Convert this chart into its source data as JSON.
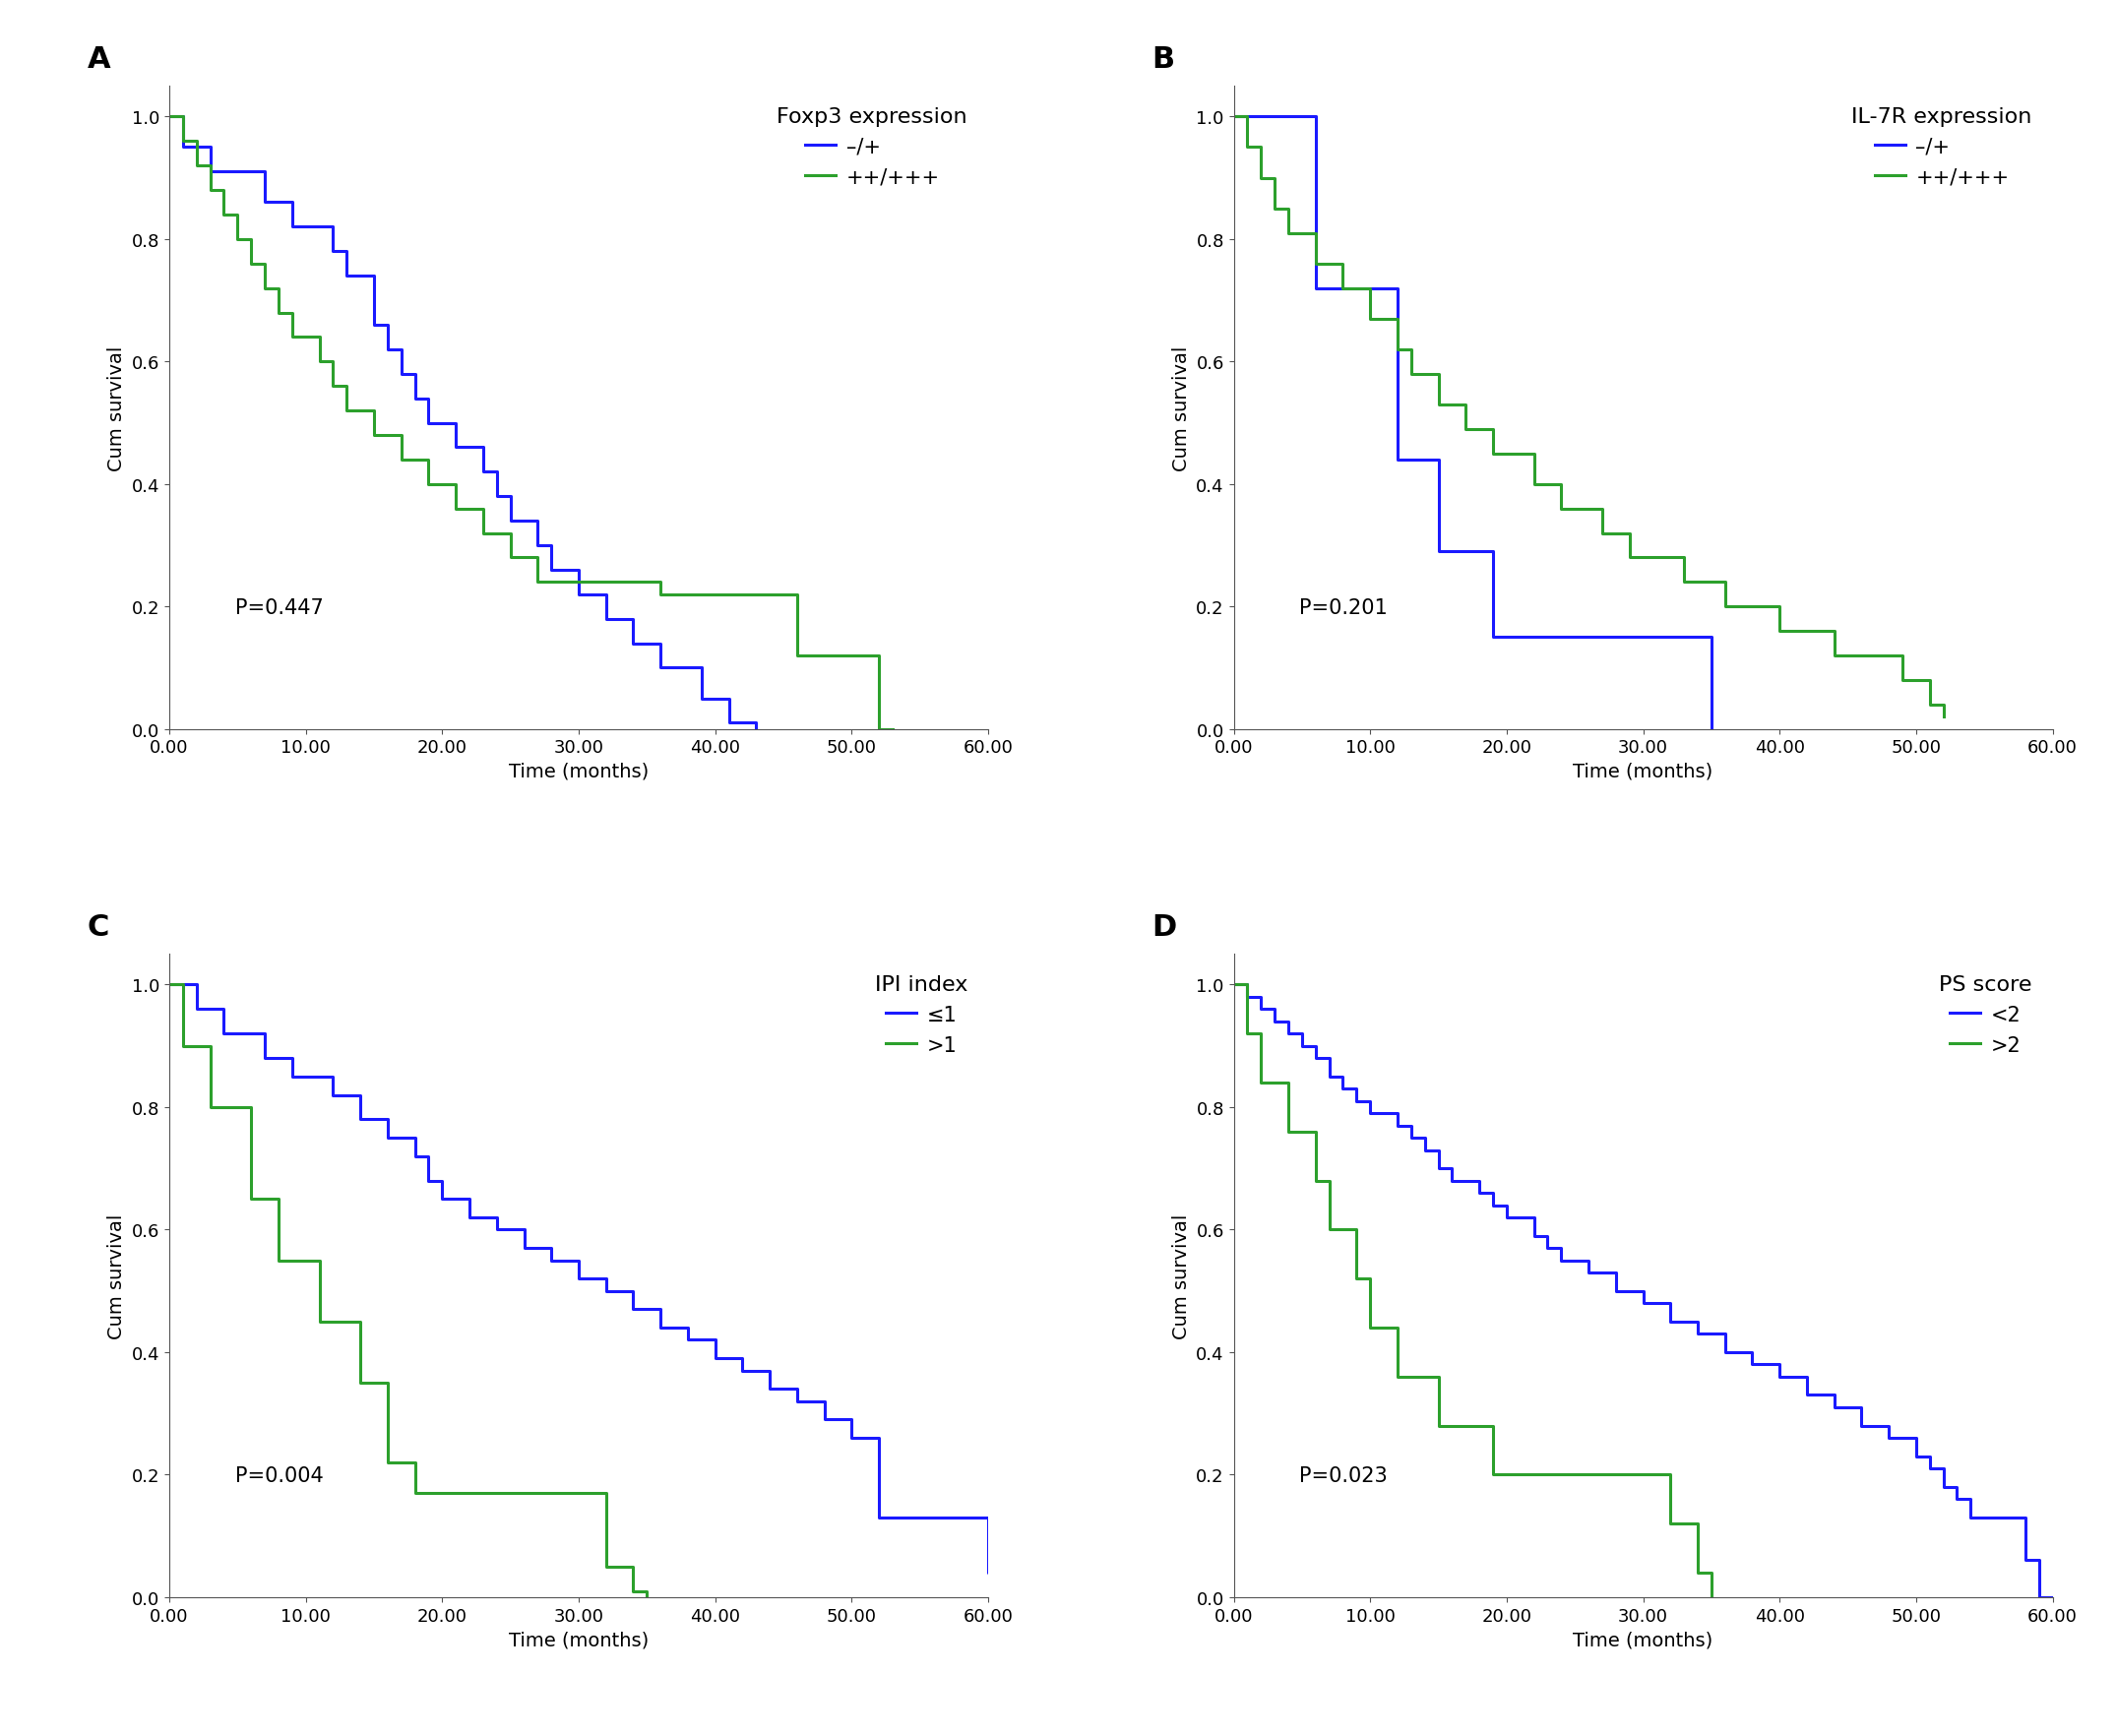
{
  "panels": [
    {
      "label": "A",
      "title": "Foxp3 expression",
      "pvalue": "P=0.447",
      "legend_labels": [
        "–/+",
        "++/+++"
      ],
      "colors": [
        "#1a1aff",
        "#2ca02c"
      ],
      "curve1": {
        "times": [
          0,
          1,
          2,
          3,
          4,
          5,
          6,
          7,
          8,
          9,
          10,
          11,
          12,
          13,
          14,
          15,
          16,
          17,
          18,
          19,
          20,
          21,
          22,
          23,
          24,
          25,
          26,
          27,
          28,
          29,
          30,
          31,
          32,
          33,
          34,
          35,
          36,
          37,
          38,
          39,
          40,
          41,
          42,
          43
        ],
        "surv": [
          1.0,
          0.95,
          0.95,
          0.91,
          0.91,
          0.91,
          0.91,
          0.86,
          0.86,
          0.82,
          0.82,
          0.82,
          0.78,
          0.74,
          0.74,
          0.66,
          0.62,
          0.58,
          0.54,
          0.5,
          0.5,
          0.46,
          0.46,
          0.42,
          0.38,
          0.34,
          0.34,
          0.3,
          0.26,
          0.26,
          0.22,
          0.22,
          0.18,
          0.18,
          0.14,
          0.14,
          0.1,
          0.1,
          0.1,
          0.05,
          0.05,
          0.01,
          0.01,
          0.0
        ]
      },
      "curve2": {
        "times": [
          0,
          1,
          2,
          3,
          4,
          5,
          6,
          7,
          8,
          9,
          10,
          11,
          12,
          13,
          14,
          15,
          16,
          17,
          18,
          19,
          20,
          21,
          22,
          23,
          24,
          25,
          26,
          27,
          28,
          29,
          30,
          31,
          32,
          33,
          34,
          35,
          36,
          37,
          38,
          39,
          40,
          41,
          42,
          43,
          44,
          45,
          46,
          47,
          48,
          49,
          50,
          51,
          52,
          53
        ],
        "surv": [
          1.0,
          0.96,
          0.92,
          0.88,
          0.84,
          0.8,
          0.76,
          0.72,
          0.68,
          0.64,
          0.64,
          0.6,
          0.56,
          0.52,
          0.52,
          0.48,
          0.48,
          0.44,
          0.44,
          0.4,
          0.4,
          0.36,
          0.36,
          0.32,
          0.32,
          0.28,
          0.28,
          0.24,
          0.24,
          0.24,
          0.24,
          0.24,
          0.24,
          0.24,
          0.24,
          0.24,
          0.22,
          0.22,
          0.22,
          0.22,
          0.22,
          0.22,
          0.22,
          0.22,
          0.22,
          0.22,
          0.12,
          0.12,
          0.12,
          0.12,
          0.12,
          0.12,
          0.0,
          0.0
        ]
      },
      "xlim": [
        0,
        60
      ],
      "xticks": [
        0,
        10,
        20,
        30,
        40,
        50,
        60
      ],
      "xtick_labels": [
        "0.00",
        "10.00",
        "20.00",
        "30.00",
        "40.00",
        "50.00",
        "60.00"
      ],
      "ylim": [
        0,
        1.05
      ],
      "yticks": [
        0.0,
        0.2,
        0.4,
        0.6,
        0.8,
        1.0
      ]
    },
    {
      "label": "B",
      "title": "IL-7R expression",
      "pvalue": "P=0.201",
      "legend_labels": [
        "–/+",
        "++/+++"
      ],
      "colors": [
        "#1a1aff",
        "#2ca02c"
      ],
      "curve1": {
        "times": [
          0,
          1,
          2,
          3,
          4,
          5,
          6,
          7,
          8,
          9,
          10,
          11,
          12,
          13,
          14,
          15,
          16,
          17,
          18,
          19,
          20,
          21,
          22,
          23,
          24,
          25,
          26,
          27,
          28,
          29,
          30,
          31,
          32,
          33,
          34,
          35
        ],
        "surv": [
          1.0,
          1.0,
          1.0,
          1.0,
          1.0,
          1.0,
          0.72,
          0.72,
          0.72,
          0.72,
          0.72,
          0.72,
          0.44,
          0.44,
          0.44,
          0.29,
          0.29,
          0.29,
          0.29,
          0.15,
          0.15,
          0.15,
          0.15,
          0.15,
          0.15,
          0.15,
          0.15,
          0.15,
          0.15,
          0.15,
          0.15,
          0.15,
          0.15,
          0.15,
          0.15,
          0.0
        ]
      },
      "curve2": {
        "times": [
          0,
          1,
          2,
          3,
          4,
          5,
          6,
          7,
          8,
          9,
          10,
          11,
          12,
          13,
          14,
          15,
          16,
          17,
          18,
          19,
          20,
          21,
          22,
          23,
          24,
          25,
          26,
          27,
          28,
          29,
          30,
          31,
          32,
          33,
          34,
          35,
          36,
          37,
          38,
          39,
          40,
          41,
          42,
          43,
          44,
          45,
          46,
          47,
          48,
          49,
          50,
          51,
          52
        ],
        "surv": [
          1.0,
          0.95,
          0.9,
          0.85,
          0.81,
          0.81,
          0.76,
          0.76,
          0.72,
          0.72,
          0.67,
          0.67,
          0.62,
          0.58,
          0.58,
          0.53,
          0.53,
          0.49,
          0.49,
          0.45,
          0.45,
          0.45,
          0.4,
          0.4,
          0.36,
          0.36,
          0.36,
          0.32,
          0.32,
          0.28,
          0.28,
          0.28,
          0.28,
          0.24,
          0.24,
          0.24,
          0.2,
          0.2,
          0.2,
          0.2,
          0.16,
          0.16,
          0.16,
          0.16,
          0.12,
          0.12,
          0.12,
          0.12,
          0.12,
          0.08,
          0.08,
          0.04,
          0.02
        ]
      },
      "xlim": [
        0,
        60
      ],
      "xticks": [
        0,
        10,
        20,
        30,
        40,
        50,
        60
      ],
      "xtick_labels": [
        "0.00",
        "10.00",
        "20.00",
        "30.00",
        "40.00",
        "50.00",
        "60.00"
      ],
      "ylim": [
        0,
        1.05
      ],
      "yticks": [
        0.0,
        0.2,
        0.4,
        0.6,
        0.8,
        1.0
      ]
    },
    {
      "label": "C",
      "title": "IPI index",
      "pvalue": "P=0.004",
      "legend_labels": [
        "≤1",
        ">1"
      ],
      "colors": [
        "#1a1aff",
        "#2ca02c"
      ],
      "curve1": {
        "times": [
          0,
          1,
          2,
          3,
          4,
          5,
          6,
          7,
          8,
          9,
          10,
          11,
          12,
          13,
          14,
          15,
          16,
          17,
          18,
          19,
          20,
          21,
          22,
          23,
          24,
          25,
          26,
          27,
          28,
          29,
          30,
          31,
          32,
          33,
          34,
          35,
          36,
          37,
          38,
          39,
          40,
          41,
          42,
          43,
          44,
          45,
          46,
          47,
          48,
          49,
          50,
          51,
          52,
          53,
          54,
          55,
          56,
          57,
          58,
          59,
          60,
          61
        ],
        "surv": [
          1.0,
          1.0,
          0.96,
          0.96,
          0.92,
          0.92,
          0.92,
          0.88,
          0.88,
          0.85,
          0.85,
          0.85,
          0.82,
          0.82,
          0.78,
          0.78,
          0.75,
          0.75,
          0.72,
          0.68,
          0.65,
          0.65,
          0.62,
          0.62,
          0.6,
          0.6,
          0.57,
          0.57,
          0.55,
          0.55,
          0.52,
          0.52,
          0.5,
          0.5,
          0.47,
          0.47,
          0.44,
          0.44,
          0.42,
          0.42,
          0.39,
          0.39,
          0.37,
          0.37,
          0.34,
          0.34,
          0.32,
          0.32,
          0.29,
          0.29,
          0.26,
          0.26,
          0.13,
          0.13,
          0.13,
          0.13,
          0.13,
          0.13,
          0.13,
          0.13,
          0.04,
          0.0
        ]
      },
      "curve2": {
        "times": [
          0,
          1,
          2,
          3,
          4,
          5,
          6,
          7,
          8,
          9,
          10,
          11,
          12,
          13,
          14,
          15,
          16,
          17,
          18,
          19,
          20,
          21,
          22,
          23,
          24,
          25,
          26,
          27,
          28,
          29,
          30,
          31,
          32,
          33,
          34,
          35
        ],
        "surv": [
          1.0,
          0.9,
          0.9,
          0.8,
          0.8,
          0.8,
          0.65,
          0.65,
          0.55,
          0.55,
          0.55,
          0.45,
          0.45,
          0.45,
          0.35,
          0.35,
          0.22,
          0.22,
          0.17,
          0.17,
          0.17,
          0.17,
          0.17,
          0.17,
          0.17,
          0.17,
          0.17,
          0.17,
          0.17,
          0.17,
          0.17,
          0.17,
          0.05,
          0.05,
          0.01,
          0.0
        ]
      },
      "xlim": [
        0,
        60
      ],
      "xticks": [
        0,
        10,
        20,
        30,
        40,
        50,
        60
      ],
      "xtick_labels": [
        "0.00",
        "10.00",
        "20.00",
        "30.00",
        "40.00",
        "50.00",
        "60.00"
      ],
      "ylim": [
        0,
        1.05
      ],
      "yticks": [
        0.0,
        0.2,
        0.4,
        0.6,
        0.8,
        1.0
      ]
    },
    {
      "label": "D",
      "title": "PS score",
      "pvalue": "P=0.023",
      "legend_labels": [
        "<2",
        ">2"
      ],
      "colors": [
        "#1a1aff",
        "#2ca02c"
      ],
      "curve1": {
        "times": [
          0,
          1,
          2,
          3,
          4,
          5,
          6,
          7,
          8,
          9,
          10,
          11,
          12,
          13,
          14,
          15,
          16,
          17,
          18,
          19,
          20,
          21,
          22,
          23,
          24,
          25,
          26,
          27,
          28,
          29,
          30,
          31,
          32,
          33,
          34,
          35,
          36,
          37,
          38,
          39,
          40,
          41,
          42,
          43,
          44,
          45,
          46,
          47,
          48,
          49,
          50,
          51,
          52,
          53,
          54,
          55,
          56,
          57,
          58,
          59,
          60
        ],
        "surv": [
          1.0,
          0.98,
          0.96,
          0.94,
          0.92,
          0.9,
          0.88,
          0.85,
          0.83,
          0.81,
          0.79,
          0.79,
          0.77,
          0.75,
          0.73,
          0.7,
          0.68,
          0.68,
          0.66,
          0.64,
          0.62,
          0.62,
          0.59,
          0.57,
          0.55,
          0.55,
          0.53,
          0.53,
          0.5,
          0.5,
          0.48,
          0.48,
          0.45,
          0.45,
          0.43,
          0.43,
          0.4,
          0.4,
          0.38,
          0.38,
          0.36,
          0.36,
          0.33,
          0.33,
          0.31,
          0.31,
          0.28,
          0.28,
          0.26,
          0.26,
          0.23,
          0.21,
          0.18,
          0.16,
          0.13,
          0.13,
          0.13,
          0.13,
          0.06,
          0.0,
          0.0
        ]
      },
      "curve2": {
        "times": [
          0,
          1,
          2,
          3,
          4,
          5,
          6,
          7,
          8,
          9,
          10,
          11,
          12,
          13,
          14,
          15,
          16,
          17,
          18,
          19,
          20,
          21,
          22,
          23,
          24,
          25,
          26,
          27,
          28,
          29,
          30,
          31,
          32,
          33,
          34,
          35
        ],
        "surv": [
          1.0,
          0.92,
          0.84,
          0.84,
          0.76,
          0.76,
          0.68,
          0.6,
          0.6,
          0.52,
          0.44,
          0.44,
          0.36,
          0.36,
          0.36,
          0.28,
          0.28,
          0.28,
          0.28,
          0.2,
          0.2,
          0.2,
          0.2,
          0.2,
          0.2,
          0.2,
          0.2,
          0.2,
          0.2,
          0.2,
          0.2,
          0.2,
          0.12,
          0.12,
          0.04,
          0.0
        ]
      },
      "xlim": [
        0,
        60
      ],
      "xticks": [
        0,
        10,
        20,
        30,
        40,
        50,
        60
      ],
      "xtick_labels": [
        "0.00",
        "10.00",
        "20.00",
        "30.00",
        "40.00",
        "50.00",
        "60.00"
      ],
      "ylim": [
        0,
        1.05
      ],
      "yticks": [
        0.0,
        0.2,
        0.4,
        0.6,
        0.8,
        1.0
      ]
    }
  ],
  "xlabel": "Time (months)",
  "ylabel": "Cum survival",
  "background_color": "#ffffff",
  "panel_label_fontsize": 22,
  "title_fontsize": 16,
  "legend_fontsize": 15,
  "axis_fontsize": 14,
  "tick_fontsize": 13,
  "pvalue_fontsize": 15,
  "linewidth": 2.2
}
